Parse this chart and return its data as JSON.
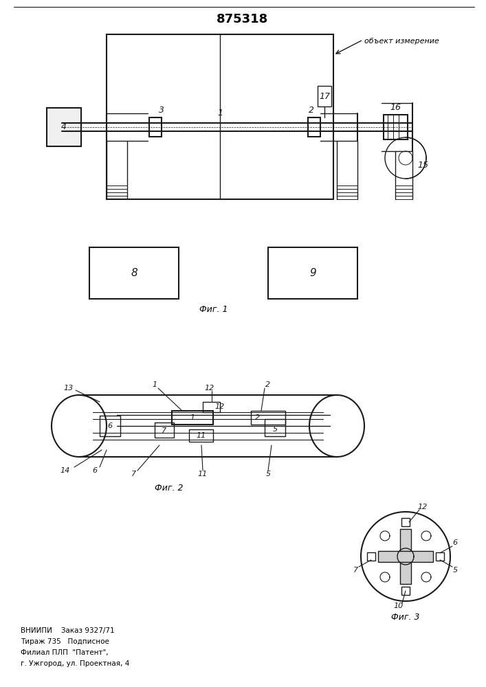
{
  "title": "875318",
  "title_fontsize": 13,
  "bg_color": "#ffffff",
  "line_color": "#1a1a1a",
  "annotation_label": "объект измерение",
  "fig1_label": "Фиг. 1",
  "fig2_label": "Фиг. 2",
  "fig3_label": "Фиг. 3",
  "footer_lines": [
    "ВНИИПИ    Заказ 9327/71",
    "Тираж 735   Подписное",
    "Филиал ПЛП  \"Патент\",",
    "г. Ужгород, ул. Проектная, 4"
  ]
}
